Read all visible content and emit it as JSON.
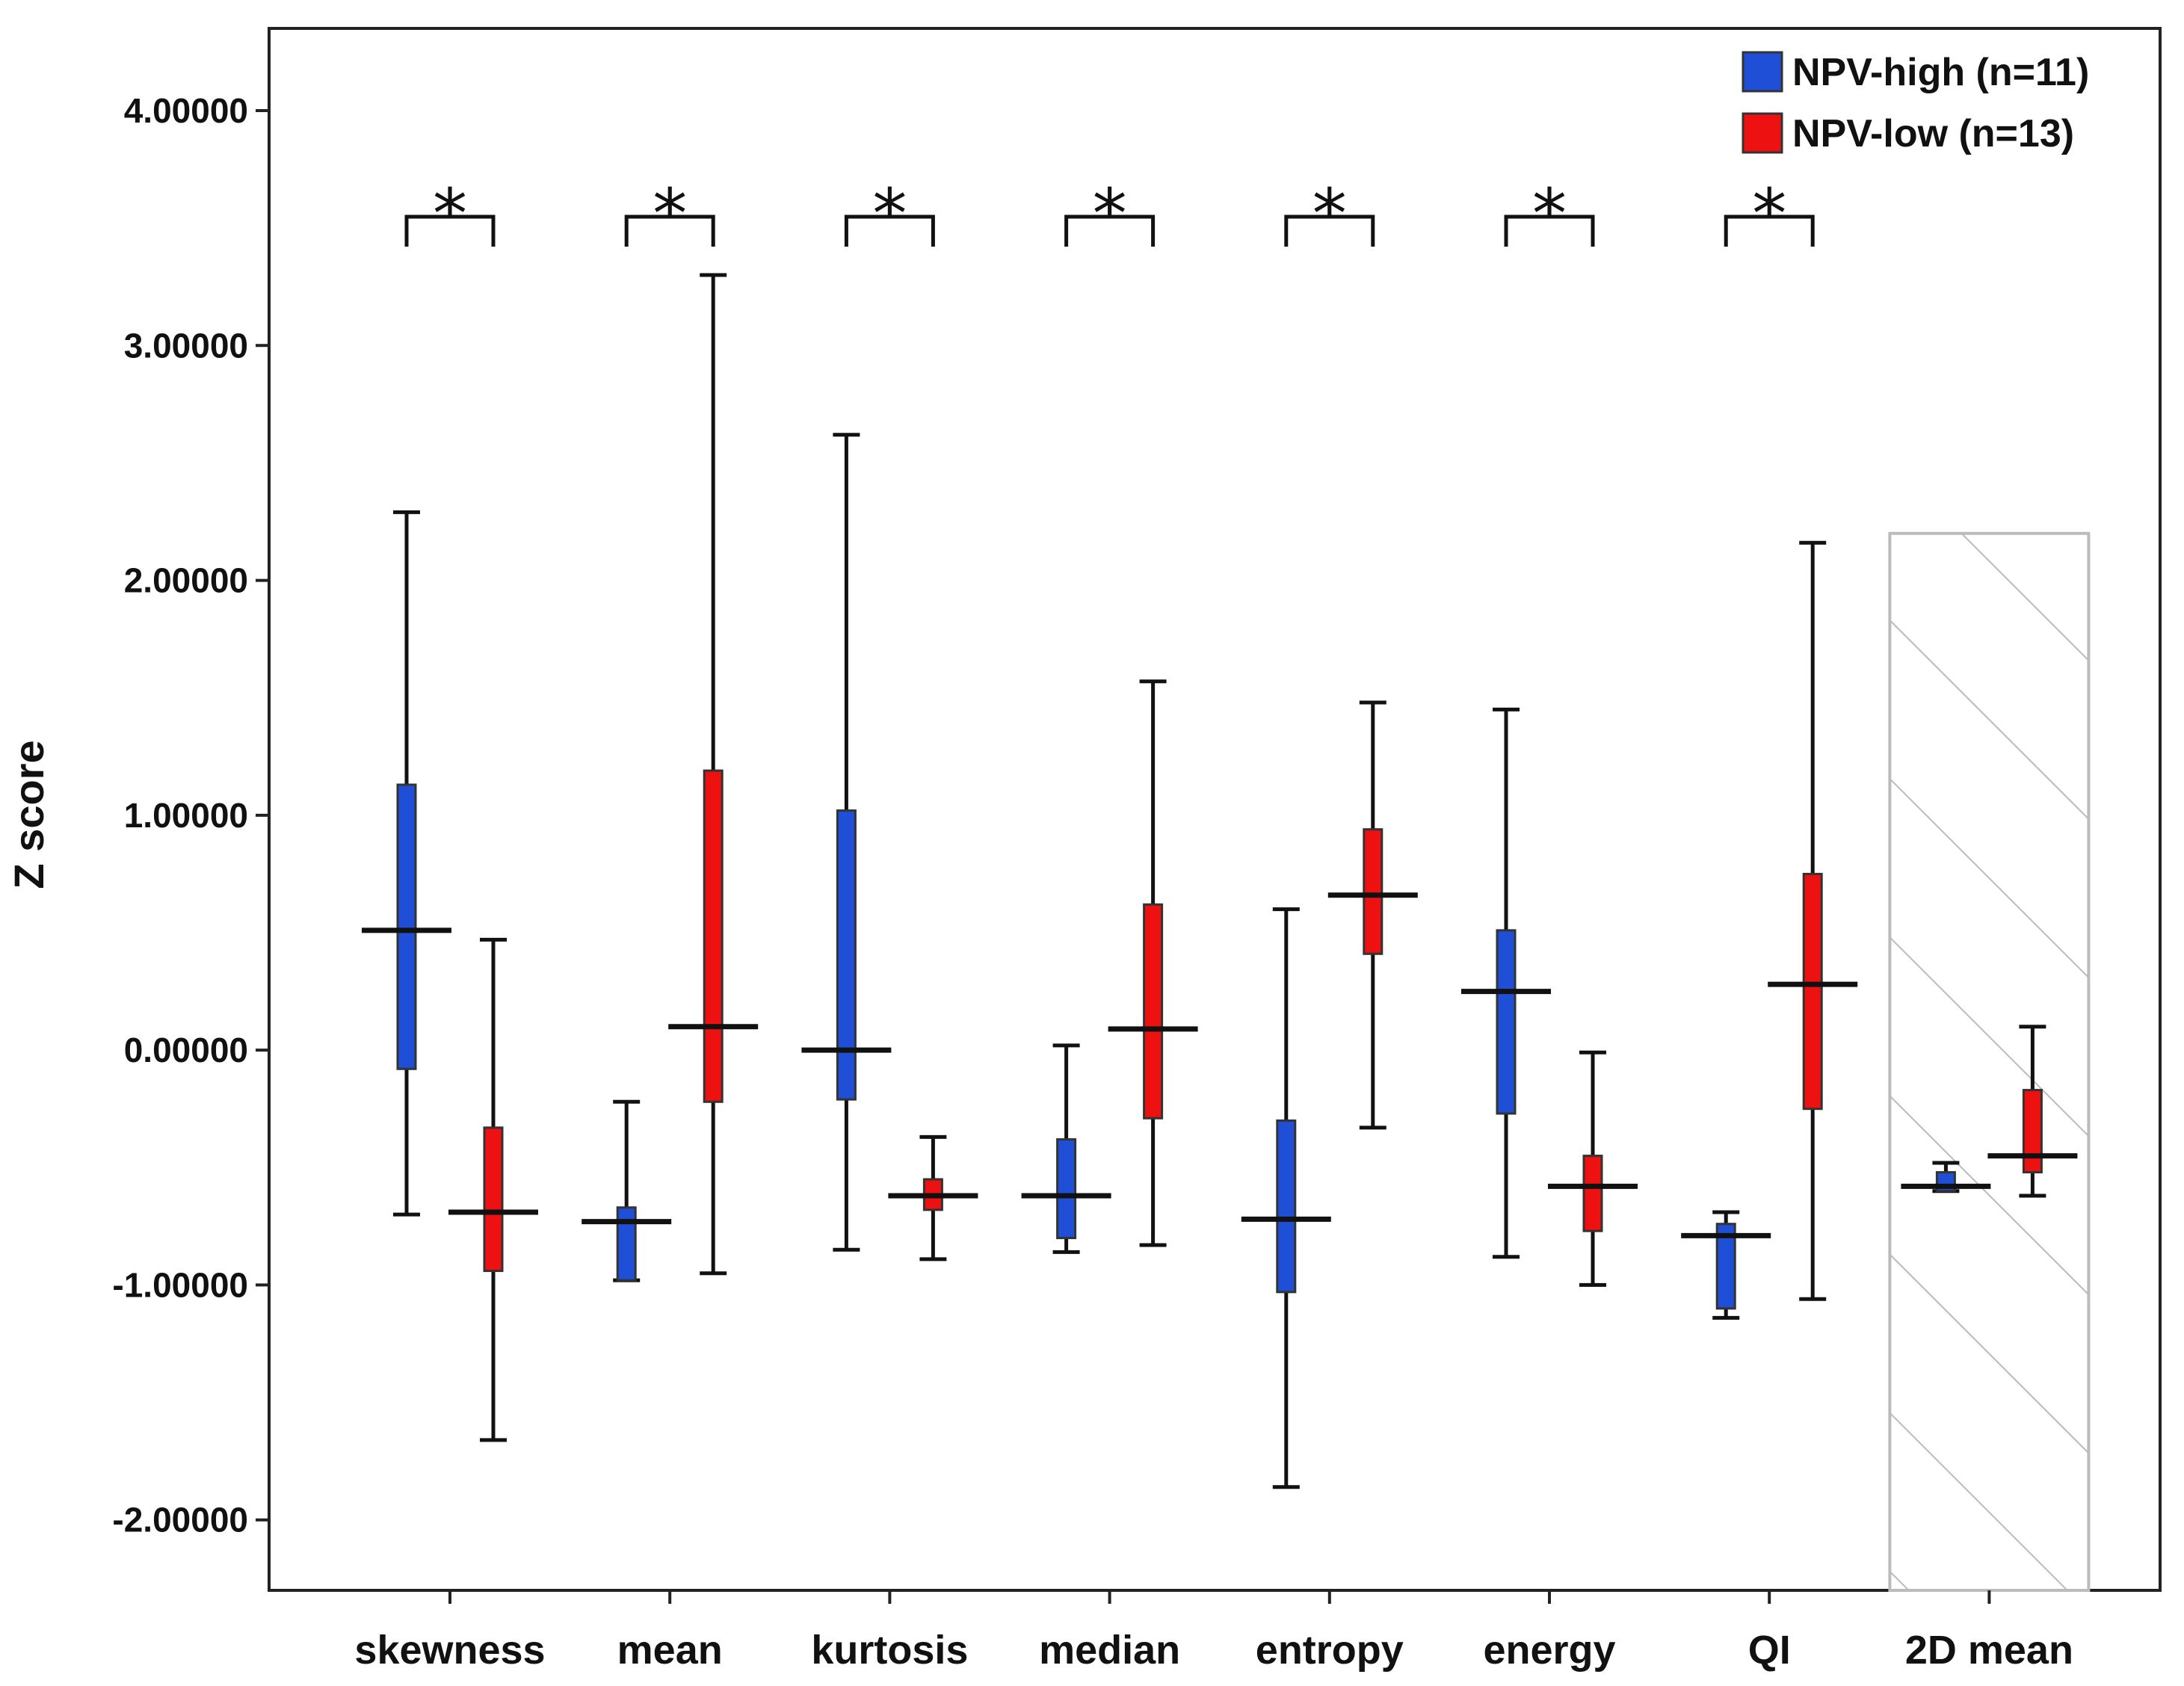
{
  "chart_data": {
    "type": "boxplot",
    "ylabel": "Z score",
    "xlabel": "",
    "ylim": [
      -2.3,
      4.35
    ],
    "yticks": [
      4.0,
      3.0,
      2.0,
      1.0,
      0.0,
      -1.0,
      -2.0
    ],
    "ytick_labels": [
      "4.00000",
      "3.00000",
      "2.00000",
      "1.00000",
      "0.00000",
      "-1.00000",
      "-2.00000"
    ],
    "categories": [
      "skewness",
      "mean",
      "kurtosis",
      "median",
      "entropy",
      "energy",
      "QI",
      "2D mean"
    ],
    "legend": [
      {
        "label": "NPV-high (n=11)",
        "color": "#1f4fd6"
      },
      {
        "label": "NPV-low  (n=13)",
        "color": "#ee1111"
      }
    ],
    "legend_position": "top-right",
    "significance_marker": "*",
    "significant_categories": [
      "skewness",
      "mean",
      "kurtosis",
      "median",
      "entropy",
      "energy",
      "QI"
    ],
    "shaded_categories": [
      "2D mean"
    ],
    "series": [
      {
        "name": "NPV-high (n=11)",
        "color": "#1f4fd6",
        "boxes": [
          {
            "min": -0.7,
            "q1": -0.08,
            "median": 0.51,
            "q3": 1.13,
            "max": 2.29
          },
          {
            "min": -0.98,
            "q1": -0.98,
            "median": -0.73,
            "q3": -0.67,
            "max": -0.22
          },
          {
            "min": -0.85,
            "q1": -0.21,
            "median": 0.0,
            "q3": 1.02,
            "max": 2.62
          },
          {
            "min": -0.86,
            "q1": -0.8,
            "median": -0.62,
            "q3": -0.38,
            "max": 0.02
          },
          {
            "min": -1.86,
            "q1": -1.03,
            "median": -0.72,
            "q3": -0.3,
            "max": 0.6
          },
          {
            "min": -0.88,
            "q1": -0.27,
            "median": 0.25,
            "q3": 0.51,
            "max": 1.45
          },
          {
            "min": -1.14,
            "q1": -1.1,
            "median": -0.79,
            "q3": -0.74,
            "max": -0.69
          },
          {
            "min": -0.6,
            "q1": -0.6,
            "median": -0.58,
            "q3": -0.52,
            "max": -0.48
          }
        ]
      },
      {
        "name": "NPV-low  (n=13)",
        "color": "#ee1111",
        "boxes": [
          {
            "min": -1.66,
            "q1": -0.94,
            "median": -0.69,
            "q3": -0.33,
            "max": 0.47
          },
          {
            "min": -0.95,
            "q1": -0.22,
            "median": 0.1,
            "q3": 1.19,
            "max": 3.3
          },
          {
            "min": -0.89,
            "q1": -0.68,
            "median": -0.62,
            "q3": -0.55,
            "max": -0.37
          },
          {
            "min": -0.83,
            "q1": -0.29,
            "median": 0.09,
            "q3": 0.62,
            "max": 1.57
          },
          {
            "min": -0.33,
            "q1": 0.41,
            "median": 0.66,
            "q3": 0.94,
            "max": 1.48
          },
          {
            "min": -1.0,
            "q1": -0.77,
            "median": -0.58,
            "q3": -0.45,
            "max": -0.01
          },
          {
            "min": -1.06,
            "q1": -0.25,
            "median": 0.28,
            "q3": 0.75,
            "max": 2.16
          },
          {
            "min": -0.62,
            "q1": -0.52,
            "median": -0.45,
            "q3": -0.17,
            "max": 0.1
          }
        ]
      }
    ]
  }
}
